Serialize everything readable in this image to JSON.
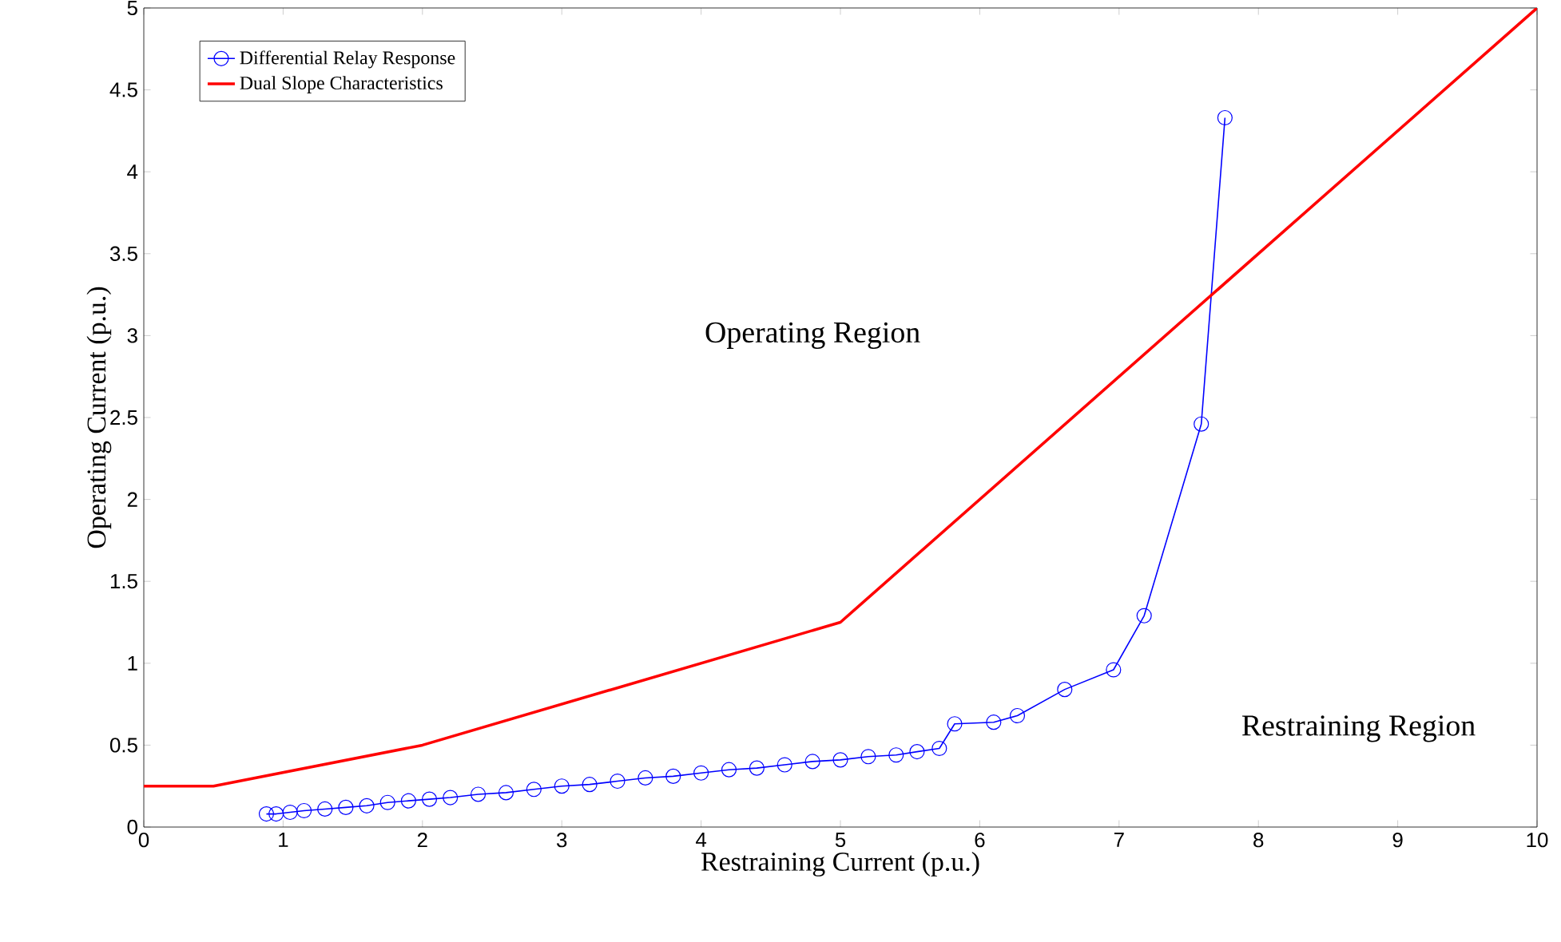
{
  "chart_data": {
    "type": "line",
    "xlabel": "Restraining Current (p.u.)",
    "ylabel": "Operating Current (p.u.)",
    "annotations": [
      "Operating Region",
      "Restraining Region"
    ],
    "xlim": [
      0,
      10
    ],
    "ylim": [
      0,
      5
    ],
    "xticks": [
      0,
      1,
      2,
      3,
      4,
      5,
      6,
      7,
      8,
      9,
      10
    ],
    "yticks": [
      0,
      0.5,
      1,
      1.5,
      2,
      2.5,
      3,
      3.5,
      4,
      4.5,
      5
    ],
    "legend": "top left",
    "grid": false,
    "series": [
      {
        "name": "Differential Relay Response",
        "color": "#0000ff",
        "marker": "circle",
        "x": [
          0.88,
          0.95,
          1.05,
          1.15,
          1.3,
          1.45,
          1.6,
          1.75,
          1.9,
          2.05,
          2.2,
          2.4,
          2.6,
          2.8,
          3.0,
          3.2,
          3.4,
          3.6,
          3.8,
          4.0,
          4.2,
          4.4,
          4.6,
          4.8,
          5.0,
          5.2,
          5.4,
          5.55,
          5.71,
          5.82,
          6.1,
          6.27,
          6.61,
          6.96,
          7.18,
          7.59,
          7.76
        ],
        "values": [
          0.08,
          0.08,
          0.09,
          0.1,
          0.11,
          0.12,
          0.13,
          0.15,
          0.16,
          0.17,
          0.18,
          0.2,
          0.21,
          0.23,
          0.25,
          0.26,
          0.28,
          0.3,
          0.31,
          0.33,
          0.35,
          0.36,
          0.38,
          0.4,
          0.41,
          0.43,
          0.44,
          0.46,
          0.48,
          0.63,
          0.64,
          0.68,
          0.84,
          0.96,
          1.29,
          2.46,
          4.33
        ]
      },
      {
        "name": "Dual Slope Characteristics",
        "color": "#ff0000",
        "marker": "none",
        "x": [
          0,
          0.5,
          2,
          5,
          10
        ],
        "values": [
          0.25,
          0.25,
          0.5,
          1.25,
          5
        ]
      }
    ]
  }
}
